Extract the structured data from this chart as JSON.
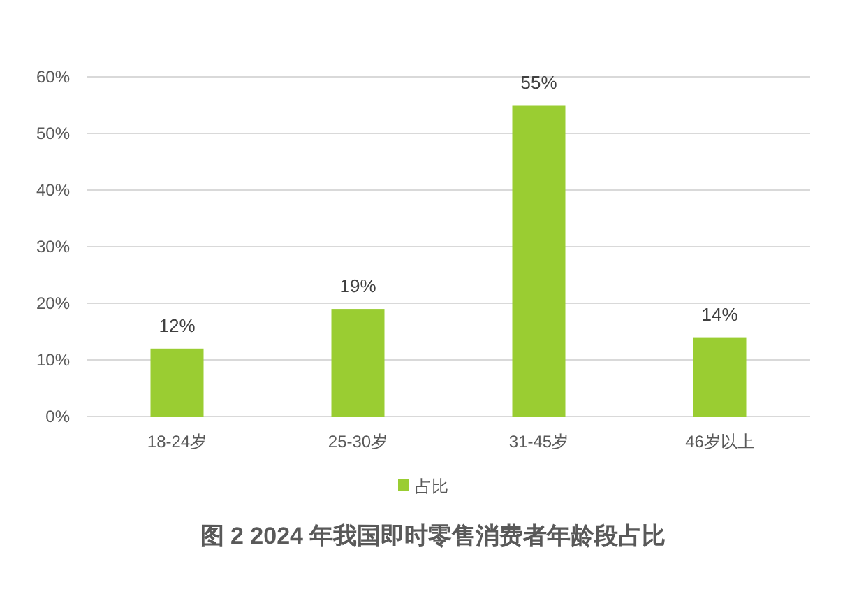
{
  "chart_data": {
    "type": "bar",
    "title": "图 2 2024 年我国即时零售消费者年龄段占比",
    "categories": [
      "18-24岁",
      "25-30岁",
      "31-45岁",
      "46岁以上"
    ],
    "series": [
      {
        "name": "占比",
        "color": "#9acd32",
        "values": [
          12,
          19,
          55,
          14
        ],
        "value_labels": [
          "12%",
          "19%",
          "55%",
          "14%"
        ]
      }
    ],
    "ylim": [
      0,
      60
    ],
    "yticks": [
      {
        "value": 0,
        "label": "0%"
      },
      {
        "value": 10,
        "label": "10%"
      },
      {
        "value": 20,
        "label": "20%"
      },
      {
        "value": 30,
        "label": "30%"
      },
      {
        "value": 40,
        "label": "40%"
      },
      {
        "value": 50,
        "label": "50%"
      },
      {
        "value": 60,
        "label": "60%"
      }
    ],
    "grid": "y",
    "legend": "bottom"
  }
}
